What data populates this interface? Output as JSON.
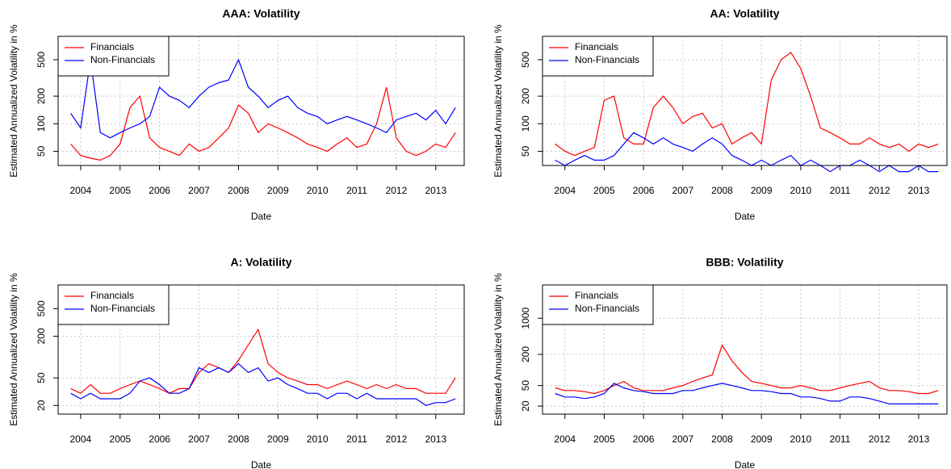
{
  "chart_data": [
    {
      "type": "line",
      "title": "AAA: Volatility",
      "x_label": "Date",
      "y_label": "Estimated Annualized Volatility in %",
      "log_y": true,
      "grid": true,
      "legend": "top-left",
      "xlim": [
        2003.43,
        2013.72
      ],
      "xticks": [
        2004,
        2005,
        2006,
        2007,
        2008,
        2009,
        2010,
        2011,
        2012,
        2013
      ],
      "ylim": [
        35,
        900
      ],
      "yticks": [
        50,
        100,
        200,
        500
      ],
      "x": [
        2003.75,
        2004,
        2004.25,
        2004.5,
        2004.75,
        2005,
        2005.25,
        2005.5,
        2005.75,
        2006,
        2006.25,
        2006.5,
        2006.75,
        2007,
        2007.25,
        2007.5,
        2007.75,
        2008,
        2008.25,
        2008.5,
        2008.75,
        2009,
        2009.25,
        2009.5,
        2009.75,
        2010,
        2010.25,
        2010.5,
        2010.75,
        2011,
        2011.25,
        2011.5,
        2011.75,
        2012,
        2012.25,
        2012.5,
        2012.75,
        2013,
        2013.25,
        2013.5
      ],
      "series": [
        {
          "name": "Financials",
          "color": "#ff0000",
          "values": [
            60,
            45,
            42,
            40,
            45,
            60,
            150,
            200,
            70,
            55,
            50,
            45,
            60,
            50,
            55,
            70,
            90,
            160,
            130,
            80,
            100,
            90,
            80,
            70,
            60,
            55,
            50,
            60,
            70,
            55,
            60,
            100,
            250,
            70,
            50,
            45,
            50,
            60,
            55,
            80
          ]
        },
        {
          "name": "Non-Financials",
          "color": "#0000ff",
          "values": [
            130,
            90,
            500,
            80,
            70,
            80,
            90,
            100,
            120,
            250,
            200,
            180,
            150,
            200,
            250,
            280,
            300,
            500,
            250,
            200,
            150,
            180,
            200,
            150,
            130,
            120,
            100,
            110,
            120,
            110,
            100,
            90,
            80,
            110,
            120,
            130,
            110,
            140,
            100,
            150
          ]
        }
      ]
    },
    {
      "type": "line",
      "title": "AA: Volatility",
      "x_label": "Date",
      "y_label": "Estimated Annualized Volatility in %",
      "log_y": true,
      "grid": true,
      "legend": "top-left",
      "xlim": [
        2003.43,
        2013.72
      ],
      "xticks": [
        2004,
        2005,
        2006,
        2007,
        2008,
        2009,
        2010,
        2011,
        2012,
        2013
      ],
      "ylim": [
        35,
        900
      ],
      "yticks": [
        50,
        100,
        200,
        500
      ],
      "x": [
        2003.75,
        2004,
        2004.25,
        2004.5,
        2004.75,
        2005,
        2005.25,
        2005.5,
        2005.75,
        2006,
        2006.25,
        2006.5,
        2006.75,
        2007,
        2007.25,
        2007.5,
        2007.75,
        2008,
        2008.25,
        2008.5,
        2008.75,
        2009,
        2009.25,
        2009.5,
        2009.75,
        2010,
        2010.25,
        2010.5,
        2010.75,
        2011,
        2011.25,
        2011.5,
        2011.75,
        2012,
        2012.25,
        2012.5,
        2012.75,
        2013,
        2013.25,
        2013.5
      ],
      "series": [
        {
          "name": "Financials",
          "color": "#ff0000",
          "values": [
            60,
            50,
            45,
            50,
            55,
            180,
            200,
            70,
            60,
            60,
            150,
            200,
            150,
            100,
            120,
            130,
            90,
            100,
            60,
            70,
            80,
            60,
            300,
            500,
            600,
            400,
            200,
            90,
            80,
            70,
            60,
            60,
            70,
            60,
            55,
            60,
            50,
            60,
            55,
            60
          ]
        },
        {
          "name": "Non-Financials",
          "color": "#0000ff",
          "values": [
            40,
            35,
            40,
            45,
            40,
            40,
            45,
            60,
            80,
            70,
            60,
            70,
            60,
            55,
            50,
            60,
            70,
            60,
            45,
            40,
            35,
            40,
            35,
            40,
            45,
            35,
            40,
            35,
            30,
            35,
            35,
            40,
            35,
            30,
            35,
            30,
            30,
            35,
            30,
            30
          ]
        }
      ]
    },
    {
      "type": "line",
      "title": "A: Volatility",
      "x_label": "Date",
      "y_label": "Estimated Annualized Volatility in %",
      "log_y": true,
      "grid": true,
      "legend": "top-left",
      "xlim": [
        2003.43,
        2013.72
      ],
      "xticks": [
        2004,
        2005,
        2006,
        2007,
        2008,
        2009,
        2010,
        2011,
        2012,
        2013
      ],
      "ylim": [
        15,
        1100
      ],
      "yticks": [
        20,
        50,
        200,
        500
      ],
      "x": [
        2003.75,
        2004,
        2004.25,
        2004.5,
        2004.75,
        2005,
        2005.25,
        2005.5,
        2005.75,
        2006,
        2006.25,
        2006.5,
        2006.75,
        2007,
        2007.25,
        2007.5,
        2007.75,
        2008,
        2008.25,
        2008.5,
        2008.75,
        2009,
        2009.25,
        2009.5,
        2009.75,
        2010,
        2010.25,
        2010.5,
        2010.75,
        2011,
        2011.25,
        2011.5,
        2011.75,
        2012,
        2012.25,
        2012.5,
        2012.75,
        2013,
        2013.25,
        2013.5
      ],
      "series": [
        {
          "name": "Financials",
          "color": "#ff0000",
          "values": [
            35,
            30,
            40,
            30,
            30,
            35,
            40,
            45,
            40,
            35,
            30,
            35,
            35,
            60,
            80,
            70,
            60,
            90,
            150,
            250,
            80,
            60,
            50,
            45,
            40,
            40,
            35,
            40,
            45,
            40,
            35,
            40,
            35,
            40,
            35,
            35,
            30,
            30,
            30,
            50
          ]
        },
        {
          "name": "Non-Financials",
          "color": "#0000ff",
          "values": [
            30,
            25,
            30,
            25,
            25,
            25,
            30,
            45,
            50,
            40,
            30,
            30,
            35,
            70,
            60,
            70,
            60,
            80,
            60,
            70,
            45,
            50,
            40,
            35,
            30,
            30,
            25,
            30,
            30,
            25,
            30,
            25,
            25,
            25,
            25,
            25,
            20,
            22,
            22,
            25
          ]
        }
      ]
    },
    {
      "type": "line",
      "title": "BBB: Volatility",
      "x_label": "Date",
      "y_label": "Estimated Annualized Volatility in %",
      "log_y": true,
      "grid": true,
      "legend": "top-left",
      "xlim": [
        2003.43,
        2013.72
      ],
      "xticks": [
        2004,
        2005,
        2006,
        2007,
        2008,
        2009,
        2010,
        2011,
        2012,
        2013
      ],
      "ylim": [
        14,
        4400
      ],
      "yticks": [
        20,
        50,
        200,
        1000
      ],
      "x": [
        2003.75,
        2004,
        2004.25,
        2004.5,
        2004.75,
        2005,
        2005.25,
        2005.5,
        2005.75,
        2006,
        2006.25,
        2006.5,
        2006.75,
        2007,
        2007.25,
        2007.5,
        2007.75,
        2008,
        2008.25,
        2008.5,
        2008.75,
        2009,
        2009.25,
        2009.5,
        2009.75,
        2010,
        2010.25,
        2010.5,
        2010.75,
        2011,
        2011.25,
        2011.5,
        2011.75,
        2012,
        2012.25,
        2012.5,
        2012.75,
        2013,
        2013.25,
        2013.5
      ],
      "series": [
        {
          "name": "Financials",
          "color": "#ff0000",
          "values": [
            45,
            40,
            40,
            38,
            35,
            40,
            50,
            60,
            45,
            40,
            40,
            40,
            45,
            50,
            60,
            70,
            80,
            300,
            150,
            90,
            60,
            55,
            50,
            45,
            45,
            50,
            45,
            40,
            40,
            45,
            50,
            55,
            60,
            45,
            40,
            40,
            38,
            35,
            35,
            40
          ]
        },
        {
          "name": "Non-Financials",
          "color": "#0000ff",
          "values": [
            35,
            30,
            30,
            28,
            30,
            35,
            55,
            45,
            40,
            38,
            35,
            35,
            35,
            40,
            40,
            45,
            50,
            55,
            50,
            45,
            40,
            40,
            38,
            35,
            35,
            30,
            30,
            28,
            25,
            25,
            30,
            30,
            28,
            25,
            22,
            22,
            22,
            22,
            22,
            22
          ]
        }
      ]
    }
  ]
}
